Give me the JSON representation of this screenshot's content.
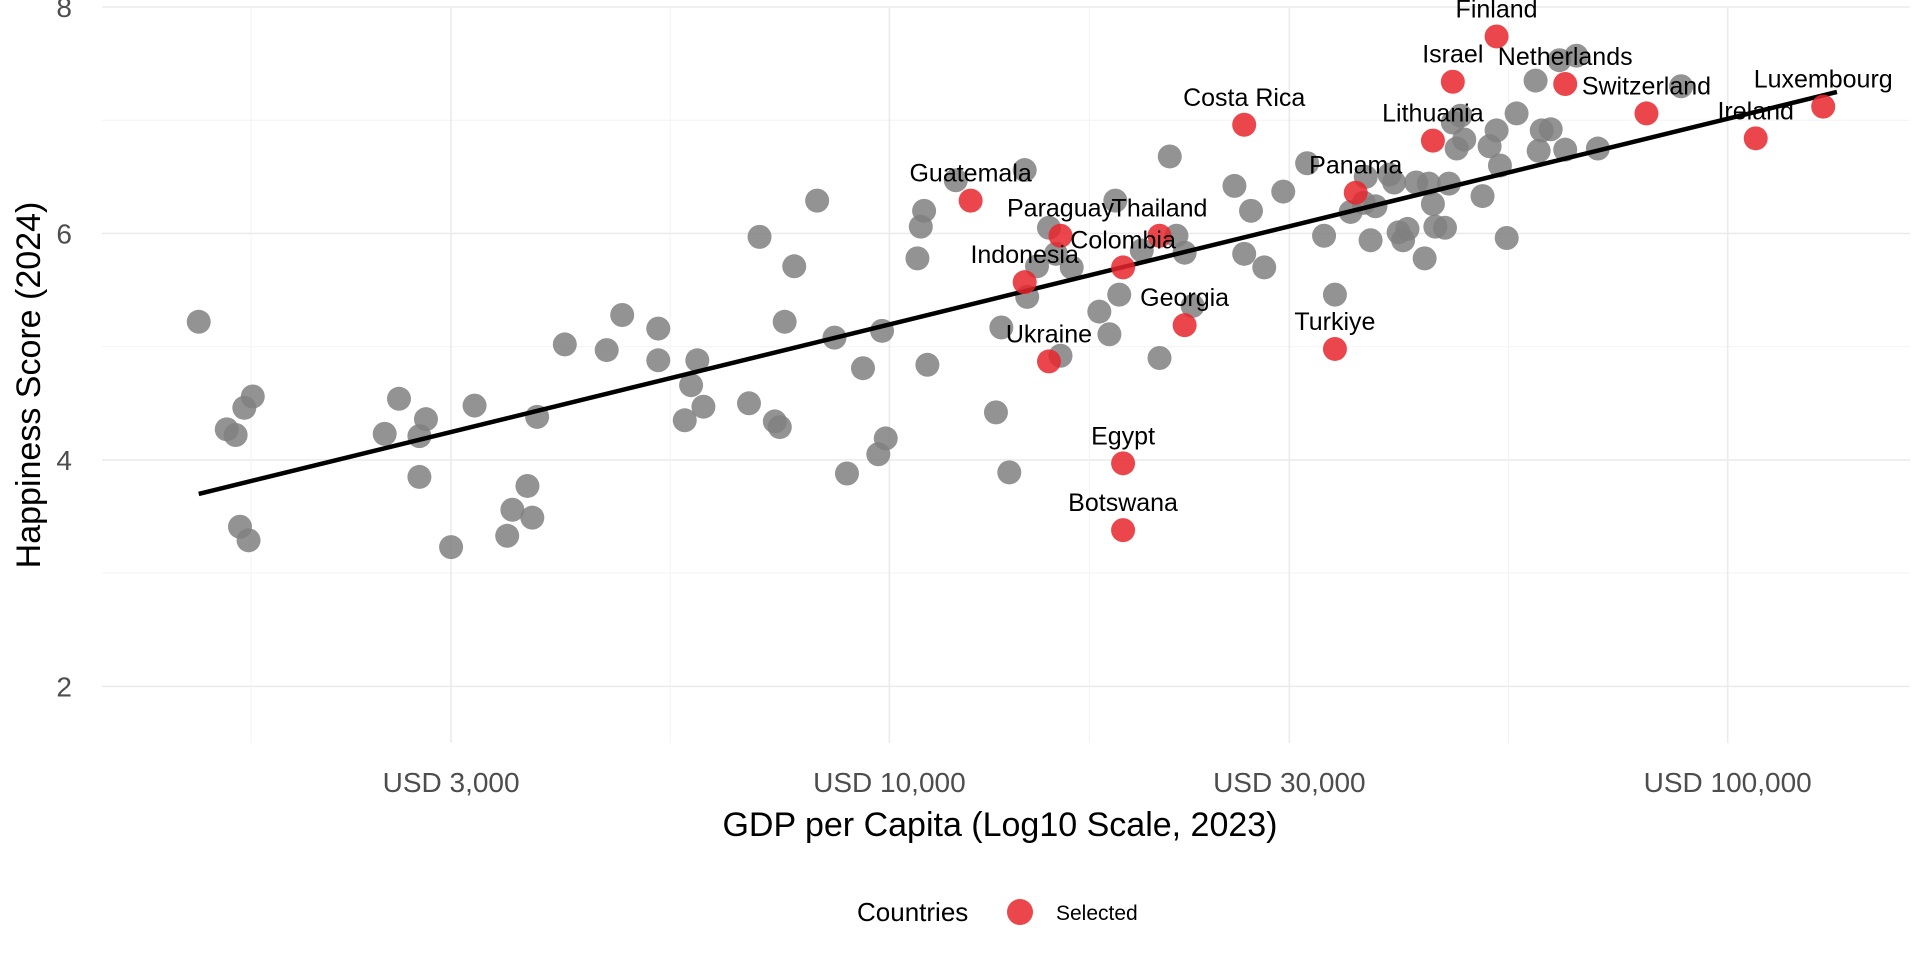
{
  "chart_data": {
    "type": "scatter",
    "xlabel": "GDP per Capita (Log10 Scale, 2023)",
    "ylabel": "Happiness Score (2024)",
    "x_scale": "log10",
    "xlim": [
      1150,
      165000
    ],
    "ylim": [
      1.5,
      8
    ],
    "x_ticks": [
      3000,
      10000,
      30000,
      100000
    ],
    "x_tick_labels": [
      "USD 3,000",
      "USD 10,000",
      "USD 30,000",
      "USD 100,000"
    ],
    "y_ticks": [
      2,
      4,
      6,
      8
    ],
    "y_tick_labels": [
      "2",
      "4",
      "6",
      "8"
    ],
    "grid": true,
    "colors": {
      "other": "#808080",
      "selected": "#e8262b",
      "trend": "#000000"
    },
    "legend": {
      "title": "Countries",
      "entries": [
        "Selected"
      ],
      "position": "bottom"
    },
    "trend_line": {
      "x": [
        1500,
        135000
      ],
      "y": [
        3.7,
        7.25
      ]
    },
    "selected_points": [
      {
        "label": "Finland",
        "x": 53000,
        "y": 7.74
      },
      {
        "label": "Israel",
        "x": 47000,
        "y": 7.34
      },
      {
        "label": "Netherlands",
        "x": 64000,
        "y": 7.32
      },
      {
        "label": "Switzerland",
        "x": 80000,
        "y": 7.06
      },
      {
        "label": "Luxembourg",
        "x": 130000,
        "y": 7.12
      },
      {
        "label": "Ireland",
        "x": 108000,
        "y": 6.84
      },
      {
        "label": "Costa Rica",
        "x": 26500,
        "y": 6.96
      },
      {
        "label": "Lithuania",
        "x": 44500,
        "y": 6.82
      },
      {
        "label": "Panama",
        "x": 36000,
        "y": 6.36
      },
      {
        "label": "Guatemala",
        "x": 12500,
        "y": 6.29
      },
      {
        "label": "Paraguay",
        "x": 16000,
        "y": 5.98
      },
      {
        "label": "Thailand",
        "x": 21000,
        "y": 5.98
      },
      {
        "label": "Colombia",
        "x": 19000,
        "y": 5.7
      },
      {
        "label": "Indonesia",
        "x": 14500,
        "y": 5.57
      },
      {
        "label": "Georgia",
        "x": 22500,
        "y": 5.19
      },
      {
        "label": "Turkiye",
        "x": 34000,
        "y": 4.98
      },
      {
        "label": "Ukraine",
        "x": 15500,
        "y": 4.87
      },
      {
        "label": "Egypt",
        "x": 19000,
        "y": 3.97
      },
      {
        "label": "Botswana",
        "x": 19000,
        "y": 3.38
      }
    ],
    "other_points": [
      [
        1500,
        5.22
      ],
      [
        1620,
        4.27
      ],
      [
        1660,
        4.22
      ],
      [
        1700,
        4.46
      ],
      [
        1740,
        4.56
      ],
      [
        1680,
        3.41
      ],
      [
        1720,
        3.29
      ],
      [
        2500,
        4.23
      ],
      [
        2600,
        4.54
      ],
      [
        2750,
        4.21
      ],
      [
        2800,
        4.36
      ],
      [
        2750,
        3.85
      ],
      [
        3200,
        4.48
      ],
      [
        3000,
        3.23
      ],
      [
        3500,
        3.33
      ],
      [
        3550,
        3.56
      ],
      [
        3700,
        3.77
      ],
      [
        3750,
        3.49
      ],
      [
        3800,
        4.38
      ],
      [
        4100,
        5.02
      ],
      [
        4600,
        4.97
      ],
      [
        4800,
        5.28
      ],
      [
        5300,
        5.16
      ],
      [
        5300,
        4.88
      ],
      [
        5800,
        4.66
      ],
      [
        5700,
        4.35
      ],
      [
        5900,
        4.88
      ],
      [
        6000,
        4.47
      ],
      [
        6800,
        4.5
      ],
      [
        7000,
        5.97
      ],
      [
        7300,
        4.34
      ],
      [
        7400,
        4.29
      ],
      [
        7500,
        5.22
      ],
      [
        7700,
        5.71
      ],
      [
        8200,
        6.29
      ],
      [
        8600,
        5.08
      ],
      [
        8900,
        3.88
      ],
      [
        9300,
        4.81
      ],
      [
        9700,
        4.05
      ],
      [
        9900,
        4.19
      ],
      [
        9800,
        5.14
      ],
      [
        10800,
        5.78
      ],
      [
        10900,
        6.06
      ],
      [
        11000,
        6.2
      ],
      [
        11100,
        4.84
      ],
      [
        12000,
        6.47
      ],
      [
        13400,
        4.42
      ],
      [
        13600,
        5.17
      ],
      [
        13900,
        3.89
      ],
      [
        14500,
        6.56
      ],
      [
        14600,
        5.44
      ],
      [
        15000,
        5.71
      ],
      [
        15500,
        6.05
      ],
      [
        15800,
        5.82
      ],
      [
        16500,
        5.7
      ],
      [
        16000,
        4.92
      ],
      [
        17800,
        5.31
      ],
      [
        18300,
        5.11
      ],
      [
        18600,
        6.29
      ],
      [
        18800,
        5.46
      ],
      [
        20000,
        5.85
      ],
      [
        21000,
        4.9
      ],
      [
        21600,
        6.68
      ],
      [
        22000,
        5.98
      ],
      [
        22500,
        5.83
      ],
      [
        23000,
        5.36
      ],
      [
        25800,
        6.42
      ],
      [
        26500,
        5.82
      ],
      [
        27000,
        6.2
      ],
      [
        28000,
        5.7
      ],
      [
        29500,
        6.37
      ],
      [
        31500,
        6.62
      ],
      [
        33000,
        5.98
      ],
      [
        34000,
        5.46
      ],
      [
        35500,
        6.19
      ],
      [
        36800,
        6.27
      ],
      [
        37000,
        6.5
      ],
      [
        37500,
        5.94
      ],
      [
        38000,
        6.24
      ],
      [
        39500,
        6.52
      ],
      [
        40000,
        6.45
      ],
      [
        40500,
        6.01
      ],
      [
        41000,
        5.94
      ],
      [
        41500,
        6.04
      ],
      [
        42500,
        6.45
      ],
      [
        43500,
        5.78
      ],
      [
        44000,
        6.44
      ],
      [
        44500,
        6.26
      ],
      [
        44800,
        6.06
      ],
      [
        46000,
        6.05
      ],
      [
        46500,
        6.44
      ],
      [
        47000,
        6.98
      ],
      [
        47500,
        6.75
      ],
      [
        48000,
        7.04
      ],
      [
        48500,
        6.83
      ],
      [
        51000,
        6.33
      ],
      [
        52000,
        6.77
      ],
      [
        53000,
        6.91
      ],
      [
        53500,
        6.6
      ],
      [
        54500,
        5.96
      ],
      [
        56000,
        7.06
      ],
      [
        59000,
        7.35
      ],
      [
        59500,
        6.73
      ],
      [
        60000,
        6.91
      ],
      [
        61500,
        6.92
      ],
      [
        63000,
        7.53
      ],
      [
        64000,
        6.74
      ],
      [
        66000,
        7.57
      ],
      [
        70000,
        6.75
      ],
      [
        88000,
        7.3
      ]
    ]
  }
}
